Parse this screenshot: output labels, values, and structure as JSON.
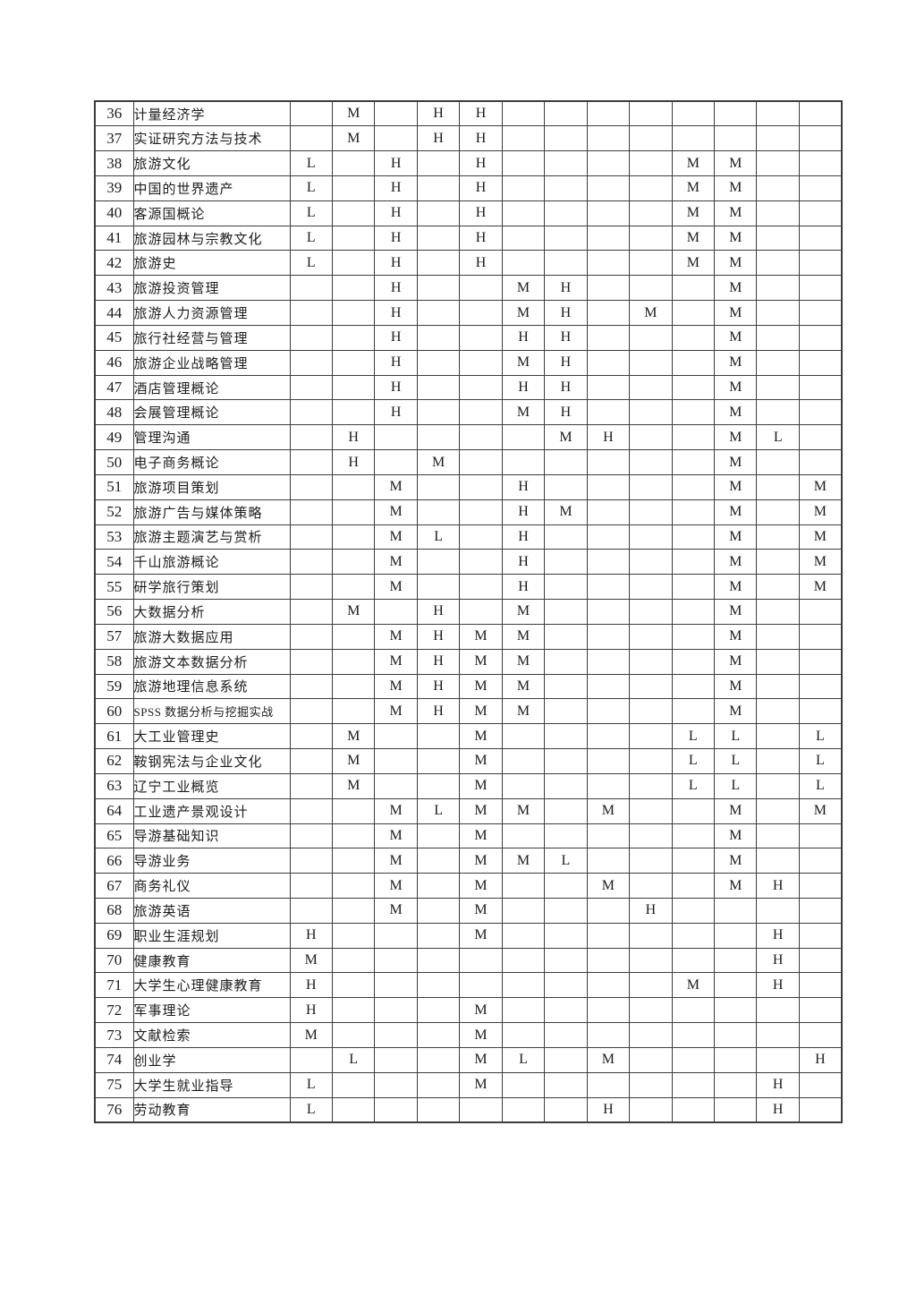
{
  "colors": {
    "background": "#ffffff",
    "border": "#3d3d3d",
    "text": "#1c1c1c"
  },
  "table": {
    "data_column_count": 13,
    "rows": [
      {
        "num": "36",
        "name": "计量经济学",
        "cells": [
          "",
          "M",
          "",
          "H",
          "H",
          "",
          "",
          "",
          "",
          "",
          "",
          "",
          ""
        ]
      },
      {
        "num": "37",
        "name": "实证研究方法与技术",
        "cells": [
          "",
          "M",
          "",
          "H",
          "H",
          "",
          "",
          "",
          "",
          "",
          "",
          "",
          ""
        ]
      },
      {
        "num": "38",
        "name": "旅游文化",
        "cells": [
          "L",
          "",
          "H",
          "",
          "H",
          "",
          "",
          "",
          "",
          "M",
          "M",
          "",
          ""
        ]
      },
      {
        "num": "39",
        "name": "中国的世界遗产",
        "cells": [
          "L",
          "",
          "H",
          "",
          "H",
          "",
          "",
          "",
          "",
          "M",
          "M",
          "",
          ""
        ]
      },
      {
        "num": "40",
        "name": "客源国概论",
        "cells": [
          "L",
          "",
          "H",
          "",
          "H",
          "",
          "",
          "",
          "",
          "M",
          "M",
          "",
          ""
        ]
      },
      {
        "num": "41",
        "name": "旅游园林与宗教文化",
        "cells": [
          "L",
          "",
          "H",
          "",
          "H",
          "",
          "",
          "",
          "",
          "M",
          "M",
          "",
          ""
        ]
      },
      {
        "num": "42",
        "name": "旅游史",
        "cells": [
          "L",
          "",
          "H",
          "",
          "H",
          "",
          "",
          "",
          "",
          "M",
          "M",
          "",
          ""
        ]
      },
      {
        "num": "43",
        "name": "旅游投资管理",
        "cells": [
          "",
          "",
          "H",
          "",
          "",
          "M",
          "H",
          "",
          "",
          "",
          "M",
          "",
          ""
        ]
      },
      {
        "num": "44",
        "name": "旅游人力资源管理",
        "cells": [
          "",
          "",
          "H",
          "",
          "",
          "M",
          "H",
          "",
          "M",
          "",
          "M",
          "",
          ""
        ]
      },
      {
        "num": "45",
        "name": "旅行社经营与管理",
        "cells": [
          "",
          "",
          "H",
          "",
          "",
          "H",
          "H",
          "",
          "",
          "",
          "M",
          "",
          ""
        ]
      },
      {
        "num": "46",
        "name": "旅游企业战略管理",
        "cells": [
          "",
          "",
          "H",
          "",
          "",
          "M",
          "H",
          "",
          "",
          "",
          "M",
          "",
          ""
        ]
      },
      {
        "num": "47",
        "name": "酒店管理概论",
        "cells": [
          "",
          "",
          "H",
          "",
          "",
          "H",
          "H",
          "",
          "",
          "",
          "M",
          "",
          ""
        ]
      },
      {
        "num": "48",
        "name": "会展管理概论",
        "cells": [
          "",
          "",
          "H",
          "",
          "",
          "M",
          "H",
          "",
          "",
          "",
          "M",
          "",
          ""
        ]
      },
      {
        "num": "49",
        "name": "管理沟通",
        "cells": [
          "",
          "H",
          "",
          "",
          "",
          "",
          "M",
          "H",
          "",
          "",
          "M",
          "L",
          ""
        ]
      },
      {
        "num": "50",
        "name": "电子商务概论",
        "cells": [
          "",
          "H",
          "",
          "M",
          "",
          "",
          "",
          "",
          "",
          "",
          "M",
          "",
          ""
        ]
      },
      {
        "num": "51",
        "name": "旅游项目策划",
        "cells": [
          "",
          "",
          "M",
          "",
          "",
          "H",
          "",
          "",
          "",
          "",
          "M",
          "",
          "M"
        ]
      },
      {
        "num": "52",
        "name": "旅游广告与媒体策略",
        "cells": [
          "",
          "",
          "M",
          "",
          "",
          "H",
          "M",
          "",
          "",
          "",
          "M",
          "",
          "M"
        ]
      },
      {
        "num": "53",
        "name": "旅游主题演艺与赏析",
        "cells": [
          "",
          "",
          "M",
          "L",
          "",
          "H",
          "",
          "",
          "",
          "",
          "M",
          "",
          "M"
        ]
      },
      {
        "num": "54",
        "name": "千山旅游概论",
        "cells": [
          "",
          "",
          "M",
          "",
          "",
          "H",
          "",
          "",
          "",
          "",
          "M",
          "",
          "M"
        ]
      },
      {
        "num": "55",
        "name": "研学旅行策划",
        "cells": [
          "",
          "",
          "M",
          "",
          "",
          "H",
          "",
          "",
          "",
          "",
          "M",
          "",
          "M"
        ]
      },
      {
        "num": "56",
        "name": "大数据分析",
        "cells": [
          "",
          "M",
          "",
          "H",
          "",
          "M",
          "",
          "",
          "",
          "",
          "M",
          "",
          ""
        ]
      },
      {
        "num": "57",
        "name": "旅游大数据应用",
        "cells": [
          "",
          "",
          "M",
          "H",
          "M",
          "M",
          "",
          "",
          "",
          "",
          "M",
          "",
          ""
        ]
      },
      {
        "num": "58",
        "name": "旅游文本数据分析",
        "cells": [
          "",
          "",
          "M",
          "H",
          "M",
          "M",
          "",
          "",
          "",
          "",
          "M",
          "",
          ""
        ]
      },
      {
        "num": "59",
        "name": "旅游地理信息系统",
        "cells": [
          "",
          "",
          "M",
          "H",
          "M",
          "M",
          "",
          "",
          "",
          "",
          "M",
          "",
          ""
        ]
      },
      {
        "num": "60",
        "name": "SPSS 数据分析与挖掘实战",
        "cells": [
          "",
          "",
          "M",
          "H",
          "M",
          "M",
          "",
          "",
          "",
          "",
          "M",
          "",
          ""
        ]
      },
      {
        "num": "61",
        "name": "大工业管理史",
        "cells": [
          "",
          "M",
          "",
          "",
          "M",
          "",
          "",
          "",
          "",
          "L",
          "L",
          "",
          "L"
        ]
      },
      {
        "num": "62",
        "name": "鞍钢宪法与企业文化",
        "cells": [
          "",
          "M",
          "",
          "",
          "M",
          "",
          "",
          "",
          "",
          "L",
          "L",
          "",
          "L"
        ]
      },
      {
        "num": "63",
        "name": "辽宁工业概览",
        "cells": [
          "",
          "M",
          "",
          "",
          "M",
          "",
          "",
          "",
          "",
          "L",
          "L",
          "",
          "L"
        ]
      },
      {
        "num": "64",
        "name": "工业遗产景观设计",
        "cells": [
          "",
          "",
          "M",
          "L",
          "M",
          "M",
          "",
          "M",
          "",
          "",
          "M",
          "",
          "M"
        ]
      },
      {
        "num": "65",
        "name": "导游基础知识",
        "cells": [
          "",
          "",
          "M",
          "",
          "M",
          "",
          "",
          "",
          "",
          "",
          "M",
          "",
          ""
        ]
      },
      {
        "num": "66",
        "name": "导游业务",
        "cells": [
          "",
          "",
          "M",
          "",
          "M",
          "M",
          "L",
          "",
          "",
          "",
          "M",
          "",
          ""
        ]
      },
      {
        "num": "67",
        "name": "商务礼仪",
        "cells": [
          "",
          "",
          "M",
          "",
          "M",
          "",
          "",
          "M",
          "",
          "",
          "M",
          "H",
          ""
        ]
      },
      {
        "num": "68",
        "name": "旅游英语",
        "cells": [
          "",
          "",
          "M",
          "",
          "M",
          "",
          "",
          "",
          "H",
          "",
          "",
          "",
          ""
        ]
      },
      {
        "num": "69",
        "name": "职业生涯规划",
        "cells": [
          "H",
          "",
          "",
          "",
          "M",
          "",
          "",
          "",
          "",
          "",
          "",
          "H",
          ""
        ]
      },
      {
        "num": "70",
        "name": "健康教育",
        "cells": [
          "M",
          "",
          "",
          "",
          "",
          "",
          "",
          "",
          "",
          "",
          "",
          "H",
          ""
        ]
      },
      {
        "num": "71",
        "name": "大学生心理健康教育",
        "cells": [
          "H",
          "",
          "",
          "",
          "",
          "",
          "",
          "",
          "",
          "M",
          "",
          "H",
          ""
        ]
      },
      {
        "num": "72",
        "name": "军事理论",
        "cells": [
          "H",
          "",
          "",
          "",
          "M",
          "",
          "",
          "",
          "",
          "",
          "",
          "",
          ""
        ]
      },
      {
        "num": "73",
        "name": "文献检索",
        "cells": [
          "M",
          "",
          "",
          "",
          "M",
          "",
          "",
          "",
          "",
          "",
          "",
          "",
          ""
        ]
      },
      {
        "num": "74",
        "name": "创业学",
        "cells": [
          "",
          "L",
          "",
          "",
          "M",
          "L",
          "",
          "M",
          "",
          "",
          "",
          "",
          "H"
        ]
      },
      {
        "num": "75",
        "name": "大学生就业指导",
        "cells": [
          "L",
          "",
          "",
          "",
          "M",
          "",
          "",
          "",
          "",
          "",
          "",
          "H",
          ""
        ]
      },
      {
        "num": "76",
        "name": "劳动教育",
        "cells": [
          "L",
          "",
          "",
          "",
          "",
          "",
          "",
          "H",
          "",
          "",
          "",
          "H",
          ""
        ]
      }
    ]
  }
}
